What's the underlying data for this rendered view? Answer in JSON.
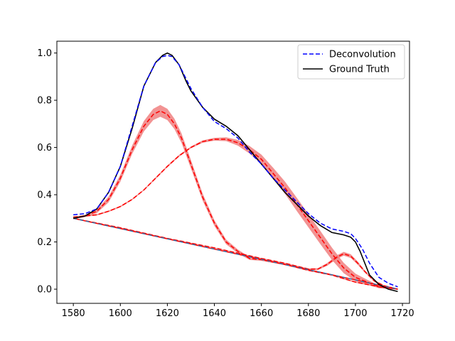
{
  "chart_data": {
    "type": "line",
    "title": "",
    "xlabel": "",
    "ylabel": "",
    "xlim": [
      1573,
      1723
    ],
    "ylim": [
      -0.06,
      1.05
    ],
    "x_ticks": [
      1580,
      1600,
      1620,
      1640,
      1660,
      1680,
      1700,
      1720
    ],
    "y_ticks": [
      0.0,
      0.2,
      0.4,
      0.6,
      0.8,
      1.0
    ],
    "x_tick_labels": [
      "1580",
      "1600",
      "1620",
      "1640",
      "1660",
      "1680",
      "1700",
      "1720"
    ],
    "y_tick_labels": [
      "0.0",
      "0.2",
      "0.4",
      "0.6",
      "0.8",
      "1.0"
    ],
    "grid": false,
    "legend_position": "top-right",
    "colors": {
      "deconvolution": "#0000ff",
      "ground_truth": "#000000",
      "components": "#ff0000",
      "band": "#f08080",
      "baseline_dash": "#1f77b4"
    },
    "series": [
      {
        "name": "Deconvolution",
        "style": "dashed",
        "x": [
          1580,
          1585,
          1590,
          1595,
          1600,
          1605,
          1610,
          1615,
          1618,
          1620,
          1622,
          1625,
          1630,
          1635,
          1640,
          1645,
          1650,
          1655,
          1660,
          1665,
          1670,
          1675,
          1680,
          1685,
          1690,
          1695,
          1698,
          1700,
          1703,
          1706,
          1710,
          1714,
          1718
        ],
        "y": [
          0.315,
          0.32,
          0.34,
          0.41,
          0.52,
          0.69,
          0.86,
          0.96,
          0.985,
          0.99,
          0.985,
          0.95,
          0.85,
          0.77,
          0.71,
          0.68,
          0.64,
          0.58,
          0.53,
          0.47,
          0.42,
          0.37,
          0.32,
          0.28,
          0.255,
          0.245,
          0.235,
          0.215,
          0.17,
          0.11,
          0.05,
          0.025,
          0.01
        ]
      },
      {
        "name": "Ground Truth",
        "style": "solid",
        "x": [
          1580,
          1585,
          1590,
          1595,
          1600,
          1605,
          1610,
          1615,
          1618,
          1620,
          1622,
          1625,
          1628,
          1630,
          1635,
          1640,
          1645,
          1650,
          1655,
          1660,
          1665,
          1670,
          1675,
          1680,
          1685,
          1690,
          1695,
          1698,
          1700,
          1702,
          1704,
          1706,
          1710,
          1714,
          1718
        ],
        "y": [
          0.3,
          0.31,
          0.34,
          0.41,
          0.52,
          0.68,
          0.86,
          0.96,
          0.99,
          1.0,
          0.99,
          0.95,
          0.88,
          0.84,
          0.77,
          0.72,
          0.69,
          0.65,
          0.59,
          0.53,
          0.47,
          0.41,
          0.36,
          0.31,
          0.27,
          0.24,
          0.23,
          0.22,
          0.2,
          0.16,
          0.11,
          0.06,
          0.02,
          0.0,
          -0.01
        ]
      }
    ],
    "components": [
      {
        "x": [
          1580,
          1585,
          1590,
          1595,
          1600,
          1605,
          1610,
          1614,
          1617,
          1620,
          1623,
          1626,
          1630,
          1635,
          1640,
          1645,
          1650,
          1655,
          1660,
          1665,
          1670,
          1680,
          1690,
          1700,
          1710,
          1718
        ],
        "y": [
          0.3,
          0.31,
          0.33,
          0.38,
          0.47,
          0.59,
          0.69,
          0.74,
          0.755,
          0.74,
          0.7,
          0.64,
          0.53,
          0.39,
          0.28,
          0.2,
          0.16,
          0.13,
          0.125,
          0.115,
          0.105,
          0.08,
          0.06,
          0.03,
          0.01,
          0.0
        ],
        "band": [
          0.004,
          0.005,
          0.008,
          0.012,
          0.015,
          0.018,
          0.022,
          0.024,
          0.025,
          0.024,
          0.022,
          0.02,
          0.018,
          0.015,
          0.012,
          0.01,
          0.008,
          0.006,
          0.005,
          0.004,
          0.003,
          0.003,
          0.003,
          0.003,
          0.002,
          0.002
        ]
      },
      {
        "x": [
          1580,
          1585,
          1590,
          1595,
          1600,
          1605,
          1610,
          1615,
          1620,
          1625,
          1630,
          1635,
          1640,
          1645,
          1650,
          1655,
          1660,
          1665,
          1670,
          1675,
          1680,
          1685,
          1690,
          1695,
          1700,
          1705,
          1710,
          1715,
          1718
        ],
        "y": [
          0.305,
          0.31,
          0.315,
          0.33,
          0.35,
          0.38,
          0.42,
          0.47,
          0.52,
          0.565,
          0.6,
          0.625,
          0.635,
          0.635,
          0.62,
          0.59,
          0.55,
          0.49,
          0.43,
          0.36,
          0.29,
          0.22,
          0.15,
          0.09,
          0.05,
          0.03,
          0.01,
          0.005,
          0.0
        ],
        "band": [
          0.003,
          0.003,
          0.003,
          0.003,
          0.003,
          0.003,
          0.003,
          0.004,
          0.004,
          0.004,
          0.004,
          0.005,
          0.006,
          0.008,
          0.012,
          0.016,
          0.02,
          0.024,
          0.026,
          0.028,
          0.028,
          0.028,
          0.026,
          0.022,
          0.016,
          0.01,
          0.006,
          0.004,
          0.003
        ]
      },
      {
        "x": [
          1580,
          1600,
          1620,
          1640,
          1660,
          1670,
          1680,
          1684,
          1688,
          1692,
          1695,
          1698,
          1701,
          1704,
          1708,
          1712,
          1718
        ],
        "y": [
          0.3,
          0.26,
          0.215,
          0.175,
          0.13,
          0.11,
          0.085,
          0.085,
          0.105,
          0.135,
          0.15,
          0.14,
          0.11,
          0.075,
          0.035,
          0.015,
          0.0
        ],
        "band": [
          0.002,
          0.002,
          0.002,
          0.002,
          0.002,
          0.002,
          0.003,
          0.004,
          0.006,
          0.008,
          0.008,
          0.008,
          0.007,
          0.005,
          0.004,
          0.003,
          0.002
        ]
      }
    ],
    "baseline": {
      "x": [
        1580,
        1718
      ],
      "y": [
        0.3,
        0.0
      ]
    },
    "legend": [
      "Deconvolution",
      "Ground Truth"
    ]
  }
}
